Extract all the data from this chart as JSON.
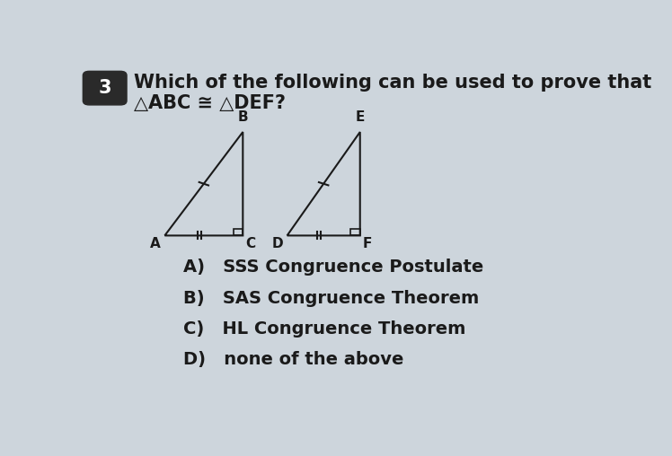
{
  "background_color": "#cdd5dc",
  "title_number": "3",
  "title_number_bg": "#2a2a2a",
  "question_line1": "Which of the following can be used to prove that",
  "question_line2": "△ABC ≅ △DEF?",
  "triangle1": {
    "A": [
      0.155,
      0.485
    ],
    "B": [
      0.305,
      0.78
    ],
    "C": [
      0.305,
      0.485
    ]
  },
  "triangle2": {
    "D": [
      0.39,
      0.485
    ],
    "E": [
      0.53,
      0.78
    ],
    "F": [
      0.53,
      0.485
    ]
  },
  "answers": [
    "A)   SSS Congruence Postulate",
    "B)   SAS Congruence Theorem",
    "C)   HL Congruence Theorem",
    "D)   none of the above"
  ],
  "font_color": "#1a1a1a",
  "triangle_color": "#1a1a1a",
  "answer_font_size": 14,
  "question_font_size": 15,
  "label_fontsize": 11
}
